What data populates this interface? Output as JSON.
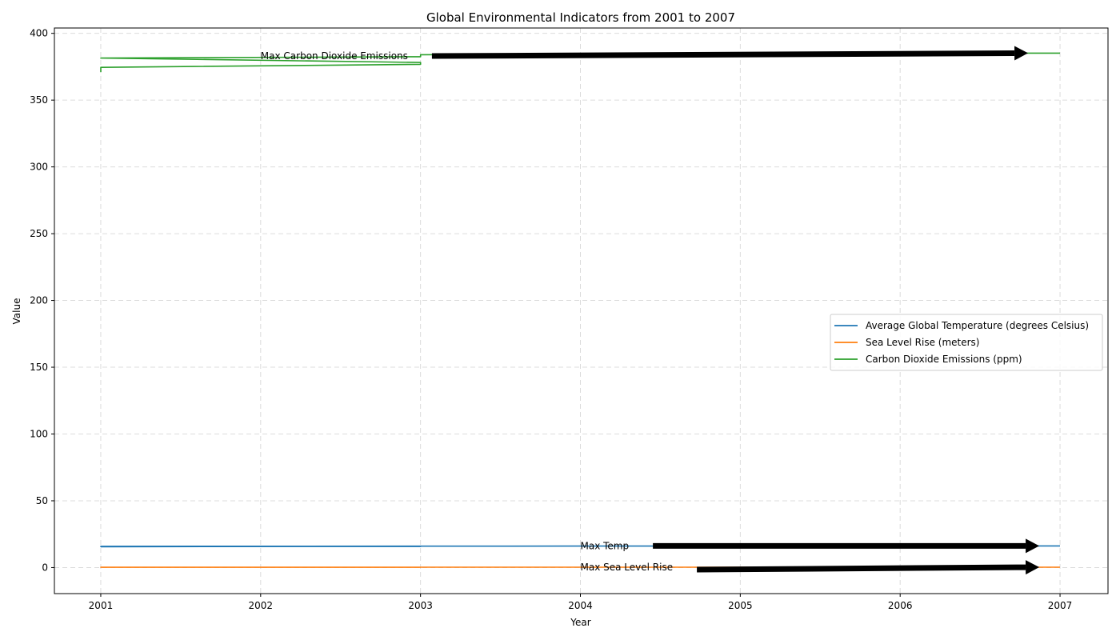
{
  "chart_data": {
    "type": "line",
    "title": "Global Environmental Indicators from 2001 to 2007",
    "xlabel": "Year",
    "ylabel": "Value",
    "xlim": [
      2000.71,
      2007.3
    ],
    "ylim": [
      -19.5,
      404
    ],
    "xticks": [
      2001,
      2002,
      2003,
      2004,
      2005,
      2006,
      2007
    ],
    "yticks": [
      0,
      50,
      100,
      150,
      200,
      250,
      300,
      350,
      400
    ],
    "grid": true,
    "legend_position": "center-right",
    "series": [
      {
        "name": "Average Global Temperature (degrees Celsius)",
        "color": "#1f77b4",
        "x": [
          2001,
          2003,
          2001,
          2003,
          2001,
          2003,
          2001,
          2003,
          2004,
          2005,
          2006,
          2007
        ],
        "y": [
          15.6,
          15.9,
          15.7,
          15.8,
          15.8,
          15.9,
          15.9,
          16.0,
          16.1,
          16.1,
          16.2,
          16.2
        ]
      },
      {
        "name": "Sea Level Rise (meters)",
        "color": "#ff7f0e",
        "x": [
          2001,
          2003,
          2001,
          2003,
          2001,
          2003,
          2001,
          2003,
          2004,
          2005,
          2006,
          2007
        ],
        "y": [
          0.2,
          0.22,
          0.21,
          0.23,
          0.22,
          0.24,
          0.23,
          0.25,
          0.26,
          0.27,
          0.28,
          0.29
        ]
      },
      {
        "name": "Carbon Dioxide Emissions (ppm)",
        "color": "#2ca02c",
        "x": [
          2001,
          2001,
          2003,
          2003,
          2001,
          2003,
          2003,
          2004,
          2005,
          2006,
          2007
        ],
        "y": [
          371.0,
          374.5,
          376.8,
          378.2,
          381.5,
          382.5,
          384.0,
          384.5,
          385.0,
          385.0,
          385.2
        ]
      }
    ],
    "annotations": [
      {
        "text": "Max Carbon Dioxide Emissions",
        "text_xy": [
          2002,
          383
        ],
        "arrow_to": [
          2006.8,
          385.2
        ]
      },
      {
        "text": "Max Temp",
        "text_xy": [
          2004,
          16.2
        ],
        "arrow_to": [
          2006.87,
          16.2
        ]
      },
      {
        "text": "Max Sea Level Rise",
        "text_xy": [
          2004,
          0.29
        ],
        "arrow_to": [
          2006.87,
          0.29
        ]
      }
    ]
  }
}
